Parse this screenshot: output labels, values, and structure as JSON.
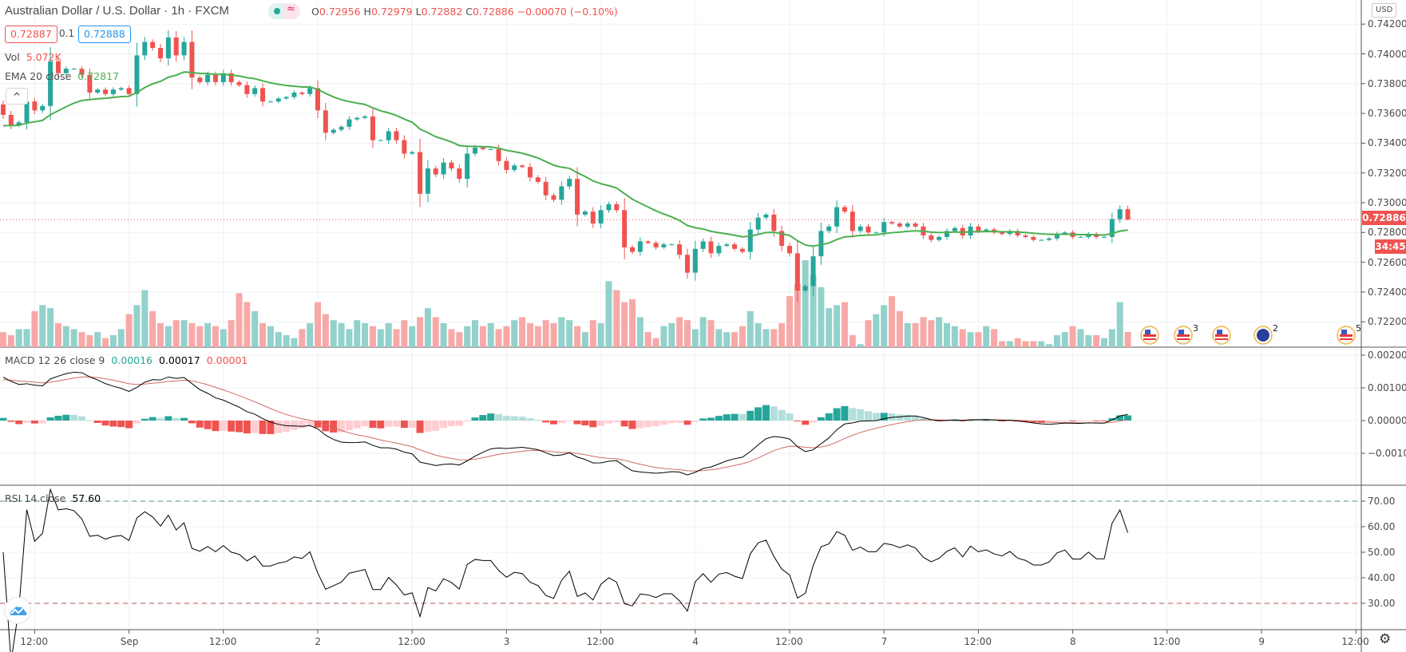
{
  "header": {
    "title": "Australian Dollar / U.S. Dollar · 1h · FXCM",
    "status_dot": "market-open-dot",
    "status_approx": "≈",
    "open_label": "O",
    "open": "0.72956",
    "high_label": "H",
    "high": "0.72979",
    "low_label": "L",
    "low": "0.72882",
    "close_label": "C",
    "close": "0.72886",
    "change": "−0.00070 (−0.10%)"
  },
  "quote": {
    "bid": "0.72887",
    "spread": "0.1",
    "ask": "0.72888"
  },
  "legends": {
    "vol_label": "Vol",
    "vol_value": "5.072K",
    "ema_label": "EMA 20 close",
    "ema_value": "0.72817",
    "macd_label": "MACD 12 26 close 9",
    "macd_hist": "0.00016",
    "macd_line": "0.00017",
    "macd_signal": "0.00001",
    "rsi_label": "RSI 14 close",
    "rsi_value": "57.60",
    "collapse_icon": "^"
  },
  "price_axis": {
    "currency": "USD",
    "current_price": "0.72886",
    "countdown": "34:45"
  },
  "colors": {
    "up": "#26a69a",
    "down": "#ef5350",
    "vol_up": "#93d1cb",
    "vol_down": "#f7a9a7",
    "ema": "#4caf50",
    "macd": "#000000",
    "signal": "#d26a64",
    "hist_up_strong": "#26a69a",
    "hist_up_weak": "#b2dfdb",
    "hist_down_strong": "#ef5350",
    "hist_down_weak": "#ffcdd2",
    "rsi": "#000000",
    "rsi_upper": "#4a9a6b",
    "rsi_lower": "#c0504d"
  },
  "events": [
    {
      "icon": "us-flag-icon",
      "count": ""
    },
    {
      "icon": "us-flag-icon",
      "count": "3"
    },
    {
      "icon": "us-flag-icon",
      "count": ""
    },
    {
      "icon": "au-flag-icon",
      "count": "2"
    },
    {
      "icon": "us-flag-icon",
      "count": "5"
    }
  ],
  "footer": {
    "settings_icon": "gear-icon",
    "logo": "tradingview-logo"
  },
  "chart_data": [
    {
      "type": "candlestick",
      "title": "Australian Dollar / U.S. Dollar · 1h · FXCM",
      "interval": "1h",
      "x_tick_labels": [
        "12:00",
        "Sep",
        "12:00",
        "2",
        "12:00",
        "3",
        "12:00",
        "4",
        "12:00",
        "7",
        "12:00",
        "8",
        "12:00",
        "9",
        "12:00"
      ],
      "y_ticks": [
        "0.74200",
        "0.74000",
        "0.73800",
        "0.73600",
        "0.73400",
        "0.73200",
        "0.73000",
        "0.72800",
        "0.72600",
        "0.72400",
        "0.72200"
      ],
      "ylim": [
        0.7215,
        0.7436
      ],
      "grid": true,
      "close": [
        0.7359,
        0.7352,
        0.7354,
        0.7368,
        0.7362,
        0.7365,
        0.7395,
        0.7387,
        0.739,
        0.739,
        0.7386,
        0.7374,
        0.7376,
        0.7373,
        0.7376,
        0.7377,
        0.7373,
        0.7399,
        0.7408,
        0.7404,
        0.7397,
        0.7411,
        0.7399,
        0.7408,
        0.7384,
        0.7381,
        0.7386,
        0.7381,
        0.7387,
        0.7381,
        0.7379,
        0.7373,
        0.7377,
        0.7368,
        0.7368,
        0.737,
        0.7371,
        0.7374,
        0.7373,
        0.7377,
        0.7362,
        0.7347,
        0.7349,
        0.7351,
        0.7356,
        0.7357,
        0.7358,
        0.7342,
        0.7342,
        0.7348,
        0.7342,
        0.7333,
        0.7334,
        0.7306,
        0.7323,
        0.7319,
        0.7327,
        0.7323,
        0.7316,
        0.7333,
        0.7337,
        0.7336,
        0.7336,
        0.7328,
        0.7322,
        0.7325,
        0.7324,
        0.7317,
        0.7314,
        0.7305,
        0.7302,
        0.7311,
        0.7316,
        0.7292,
        0.7294,
        0.7286,
        0.7295,
        0.7299,
        0.7295,
        0.727,
        0.7267,
        0.7274,
        0.7273,
        0.727,
        0.7272,
        0.7272,
        0.7265,
        0.7253,
        0.7269,
        0.7274,
        0.7266,
        0.7271,
        0.7272,
        0.7269,
        0.7267,
        0.7282,
        0.729,
        0.7292,
        0.7281,
        0.7271,
        0.7266,
        0.7241,
        0.7244,
        0.7264,
        0.7281,
        0.7284,
        0.7297,
        0.7294,
        0.7281,
        0.7284,
        0.728,
        0.728,
        0.7287,
        0.7286,
        0.7284,
        0.7286,
        0.7284,
        0.7278,
        0.7275,
        0.7277,
        0.7281,
        0.7283,
        0.7278,
        0.7284,
        0.7281,
        0.7282,
        0.728,
        0.7279,
        0.7281,
        0.7278,
        0.7277,
        0.7275,
        0.7275,
        0.7276,
        0.7279,
        0.728,
        0.7277,
        0.7277,
        0.7279,
        0.7277,
        0.7277,
        0.7289,
        0.72956,
        0.72886
      ],
      "last_bar": {
        "open": 0.72956,
        "high": 0.72979,
        "low": 0.72882,
        "close": 0.72886
      }
    },
    {
      "type": "bar",
      "name": "Vol",
      "unit": "K",
      "values": [
        5,
        4,
        6,
        6,
        12,
        14,
        13,
        8,
        7,
        6,
        5,
        4,
        5,
        3,
        4,
        6,
        11,
        14,
        19,
        12,
        8,
        7,
        9,
        9,
        8,
        7,
        8,
        7,
        6,
        9,
        18,
        15,
        12,
        8,
        7,
        5,
        4,
        3,
        6,
        8,
        15,
        11,
        9,
        8,
        6,
        9,
        8,
        7,
        6,
        8,
        6,
        9,
        7,
        10,
        13,
        10,
        8,
        6,
        5,
        7,
        9,
        7,
        8,
        6,
        7,
        9,
        10,
        8,
        7,
        9,
        8,
        10,
        9,
        7,
        5,
        9,
        8,
        22,
        19,
        15,
        16,
        10,
        5,
        3,
        7,
        8,
        10,
        9,
        6,
        10,
        9,
        6,
        5,
        5,
        7,
        12,
        8,
        6,
        6,
        8,
        17,
        21,
        29,
        24,
        20,
        13,
        14,
        15,
        4,
        1,
        9,
        11,
        14,
        17,
        12,
        8,
        8,
        10,
        9,
        10,
        8,
        7,
        6,
        5,
        5,
        7,
        6,
        2,
        2,
        3,
        2,
        2,
        2,
        1,
        4,
        5,
        7,
        6,
        4,
        4,
        3,
        6,
        15,
        5.072
      ]
    },
    {
      "type": "line",
      "name": "MACD 12 26 close 9",
      "y_ticks": [
        "0.00200",
        "0.00100",
        "0.00000",
        "−0.00100"
      ],
      "derived_from": "close"
    },
    {
      "type": "line",
      "name": "RSI 14 close",
      "y_ticks": [
        "70.00",
        "60.00",
        "50.00",
        "40.00",
        "30.00"
      ],
      "bands": [
        70,
        30
      ],
      "derived_from": "close"
    }
  ]
}
